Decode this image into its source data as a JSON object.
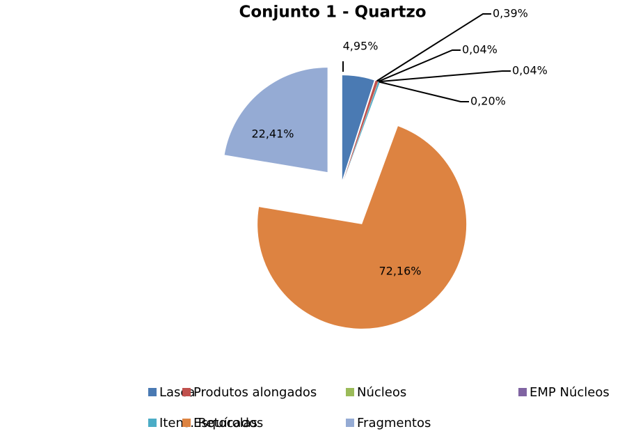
{
  "chart_data": {
    "type": "pie",
    "title": "Conjunto 1 - Quartzo",
    "categories": [
      "Lasca",
      "Produtos alongados",
      "Núcleos",
      "EMP Núcleos",
      "Itens. Retocados",
      "Esquírolas",
      "Fragmentos"
    ],
    "values": [
      4.95,
      0.39,
      0.04,
      0.04,
      0.2,
      72.16,
      22.41
    ],
    "value_labels": [
      "4,95%",
      "0,39%",
      "0,04%",
      "0,04%",
      "0,20%",
      "72,16%",
      "22,41%"
    ],
    "colors": [
      "#4a7ab3",
      "#c0504d",
      "#9bbb59",
      "#8064a2",
      "#4bacc6",
      "#dd8341",
      "#95abd4"
    ]
  }
}
